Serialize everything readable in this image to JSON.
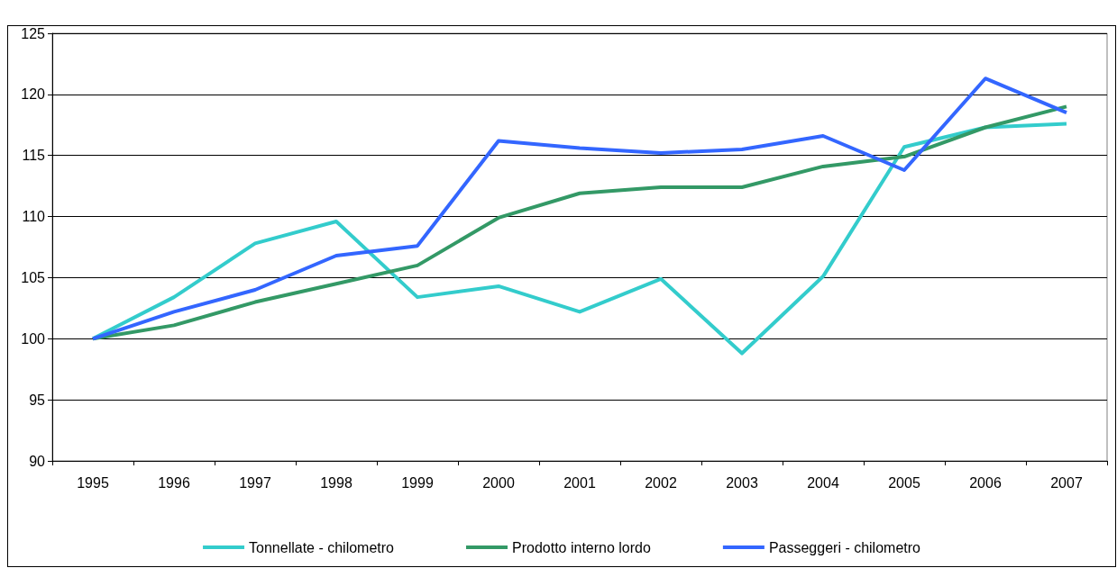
{
  "chart_data": {
    "type": "line",
    "categories": [
      "1995",
      "1996",
      "1997",
      "1998",
      "1999",
      "2000",
      "2001",
      "2002",
      "2003",
      "2004",
      "2005",
      "2006",
      "2007"
    ],
    "series": [
      {
        "name": "Tonnellate - chilometro",
        "color": "#33cccc",
        "values": [
          100,
          103.4,
          107.8,
          109.6,
          103.4,
          104.3,
          102.2,
          104.9,
          98.8,
          105.1,
          115.7,
          117.3,
          117.6
        ]
      },
      {
        "name": "Prodotto interno lordo",
        "color": "#339966",
        "values": [
          100,
          101.1,
          103.0,
          104.5,
          106.0,
          109.9,
          111.9,
          112.4,
          112.4,
          114.1,
          114.9,
          117.3,
          119.0
        ]
      },
      {
        "name": "Passeggeri - chilometro",
        "color": "#3366ff",
        "values": [
          100,
          102.2,
          104.0,
          106.8,
          107.6,
          116.2,
          115.6,
          115.2,
          115.5,
          116.6,
          113.8,
          121.3,
          118.5
        ]
      }
    ],
    "ylim": [
      90,
      125
    ],
    "yticks": [
      90,
      95,
      100,
      105,
      110,
      115,
      120,
      125
    ],
    "grid": "y",
    "legend": "bottom",
    "marker": "none",
    "line_style": "solid"
  }
}
